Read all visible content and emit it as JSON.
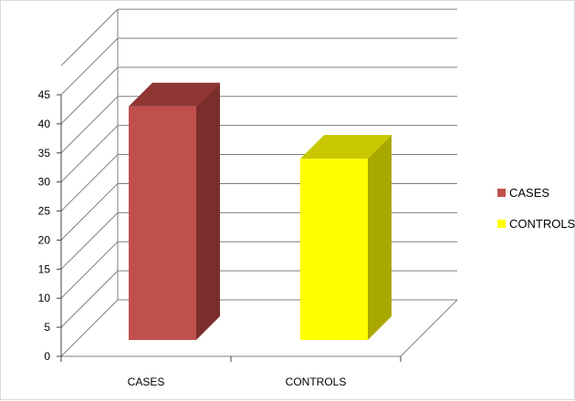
{
  "chart_data": {
    "type": "bar",
    "categories": [
      "CASES",
      "CONTROLS"
    ],
    "values": [
      43,
      34
    ],
    "series": [
      {
        "name": "CASES",
        "values": [
          43,
          null
        ],
        "color": "#c0504d"
      },
      {
        "name": "CONTROLS",
        "values": [
          null,
          34
        ],
        "color": "#ffff00"
      }
    ],
    "title": "",
    "xlabel": "",
    "ylabel": "",
    "ylim": [
      0,
      45
    ],
    "yticks": [
      0,
      5,
      10,
      15,
      20,
      25,
      30,
      35,
      40,
      45
    ],
    "grid": true,
    "legend": "right",
    "three_d": true
  },
  "colors": {
    "cases_front": "#c0504d",
    "cases_side": "#7b2d2c",
    "cases_top": "#8f3533",
    "controls_front": "#ffff00",
    "controls_side": "#a9a800",
    "controls_top": "#c9c800",
    "grid": "#7f7f7f"
  }
}
